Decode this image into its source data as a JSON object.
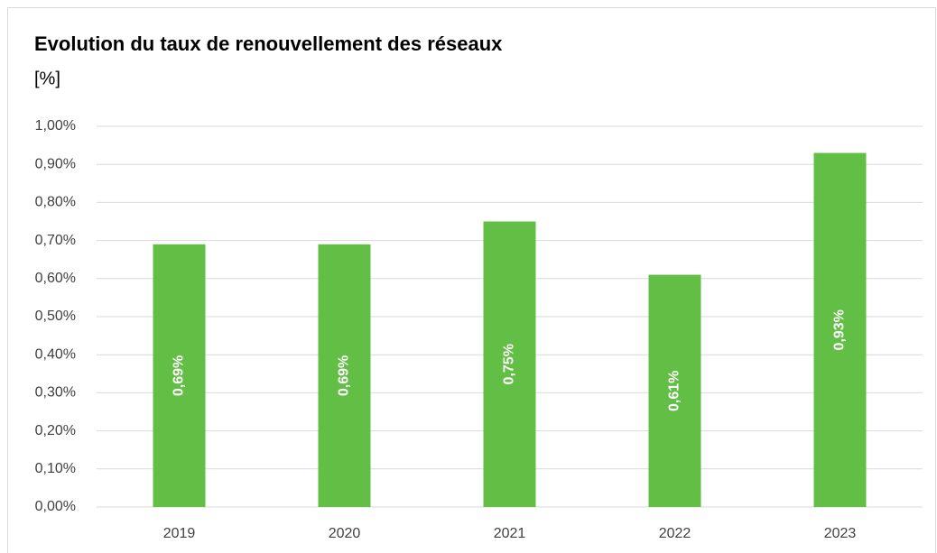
{
  "chart_data": {
    "type": "bar",
    "title": "Evolution du taux de renouvellement des réseaux",
    "y_axis_label": "[%]",
    "categories": [
      "2019",
      "2020",
      "2021",
      "2022",
      "2023"
    ],
    "values": [
      0.69,
      0.69,
      0.75,
      0.61,
      0.93
    ],
    "value_labels": [
      "0,69%",
      "0,69%",
      "0,75%",
      "0,61%",
      "0,93%"
    ],
    "color": "#63be45",
    "ylim": [
      0,
      1
    ],
    "yticks": [
      {
        "value": 0,
        "label": "0,00%"
      },
      {
        "value": 0.1,
        "label": "0,10%"
      },
      {
        "value": 0.2,
        "label": "0,20%"
      },
      {
        "value": 0.3,
        "label": "0,30%"
      },
      {
        "value": 0.4,
        "label": "0,40%"
      },
      {
        "value": 0.5,
        "label": "0,50%"
      },
      {
        "value": 0.6,
        "label": "0,60%"
      },
      {
        "value": 0.7,
        "label": "0,70%"
      },
      {
        "value": 0.8,
        "label": "0,80%"
      },
      {
        "value": 0.9,
        "label": "0,90%"
      },
      {
        "value": 1,
        "label": "1,00%"
      }
    ],
    "grid": true
  }
}
